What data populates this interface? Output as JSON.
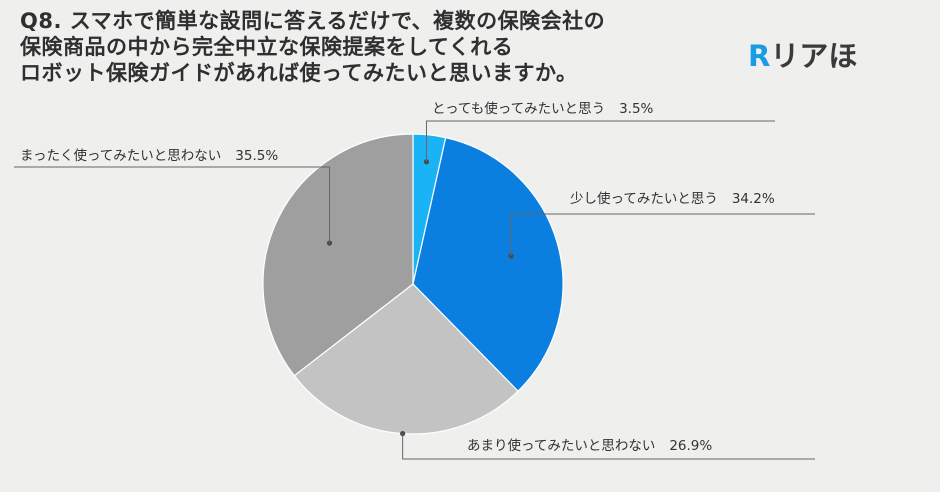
{
  "title_lines": [
    "Q8. スマホで簡単な設問に答えるだけで、複数の保険会社の",
    "保険商品の中から完全中立な保険提案をしてくれる",
    "ロボット保険ガイドがあれば使ってみたいと思いますか。"
  ],
  "logo": {
    "mark": "R",
    "text": "リアほ",
    "color": "#1a9be6"
  },
  "chart_data": {
    "type": "pie",
    "start": "12 o'clock",
    "direction": "clockwise",
    "slices": [
      {
        "label": "とっても使ってみたいと思う",
        "value": 3.5,
        "display": "3.5%",
        "color": "#1ab4f6"
      },
      {
        "label": "少し使ってみたいと思う",
        "value": 34.2,
        "display": "34.2%",
        "color": "#0a7fe0"
      },
      {
        "label": "あまり使ってみたいと思わない",
        "value": 26.9,
        "display": "26.9%",
        "color": "#c3c3c3"
      },
      {
        "label": "まったく使ってみたいと思わない",
        "value": 35.5,
        "display": "35.5%",
        "color": "#9f9f9f"
      }
    ]
  }
}
